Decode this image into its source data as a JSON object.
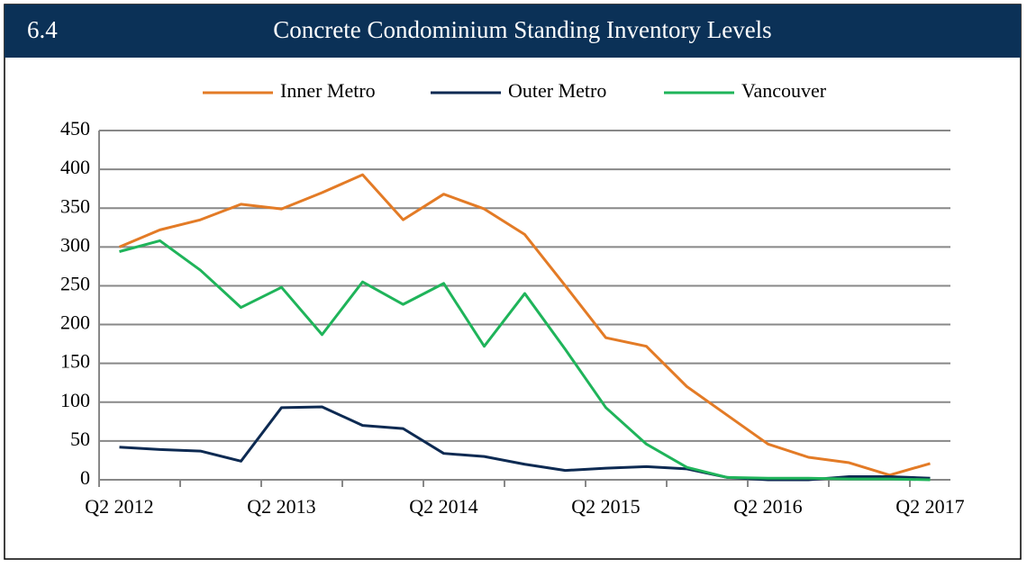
{
  "chart_data": {
    "type": "line",
    "figure_number": "6.4",
    "title": "Concrete Condominium Standing Inventory Levels",
    "categories": [
      "Q2 2012",
      null,
      null,
      null,
      "Q2 2013",
      null,
      null,
      null,
      "Q2 2014",
      null,
      null,
      null,
      "Q2 2015",
      null,
      null,
      null,
      "Q2 2016",
      null,
      null,
      null,
      "Q2 2017"
    ],
    "series": [
      {
        "name": "Inner Metro",
        "color": "#e37b26",
        "values": [
          300,
          322,
          335,
          355,
          349,
          370,
          393,
          335,
          368,
          349,
          316,
          250,
          183,
          172,
          120,
          83,
          46,
          29,
          22,
          6,
          21
        ]
      },
      {
        "name": "Outer Metro",
        "color": "#0d2a52",
        "values": [
          42,
          39,
          37,
          24,
          93,
          94,
          70,
          66,
          34,
          30,
          20,
          12,
          15,
          17,
          14,
          3,
          0,
          0,
          4,
          4,
          2
        ]
      },
      {
        "name": "Vancouver",
        "color": "#1fb45a",
        "values": [
          294,
          308,
          270,
          222,
          248,
          187,
          255,
          226,
          253,
          172,
          240,
          168,
          93,
          46,
          16,
          3,
          2,
          2,
          1,
          1,
          0
        ]
      }
    ],
    "ylim": [
      0,
      450
    ],
    "yticks": [
      0,
      50,
      100,
      150,
      200,
      250,
      300,
      350,
      400,
      450
    ],
    "grid": true,
    "legend": "top"
  }
}
